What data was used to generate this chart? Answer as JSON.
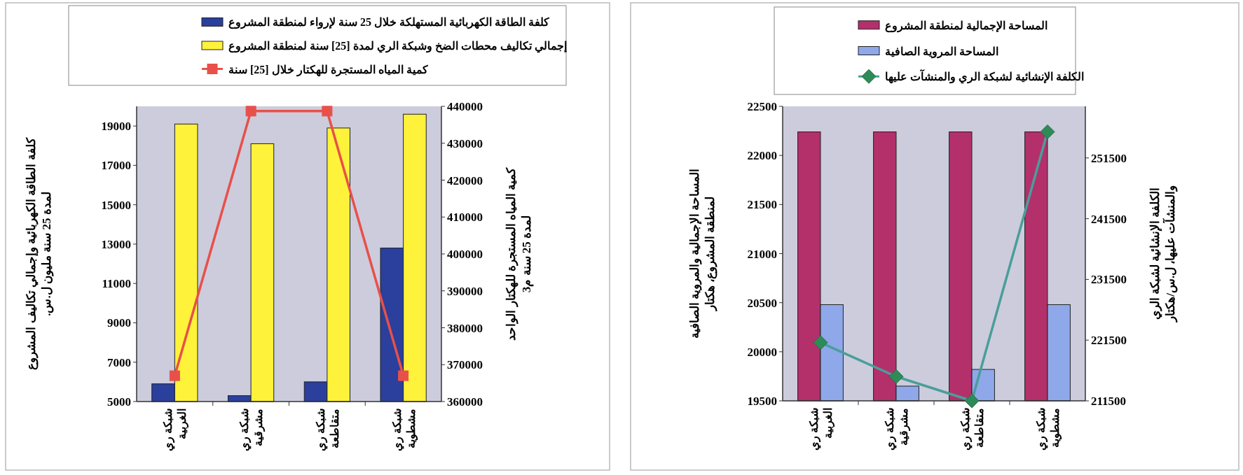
{
  "chart_data": [
    {
      "type": "bar",
      "categories": [
        "شبكة ري الغربية",
        "شبكة ري مشرقية",
        "شبكة ري متقاطعة",
        "شبكة ري مشطوية"
      ],
      "ylabel": "كلفة الطاقة الكهربائية وإجمالي تكاليف المشروع لمدة 25 سنة مليون ل.س.",
      "y2label": "كمية المياه المستجرة للهكتار الواحد لمدة 25 سنة م3",
      "series": [
        {
          "name": "كلفة الطاقة الكهربائية المستهلكة خلال 25 سنة لإرواء لمنطقة المشروع",
          "color": "#2b3f9c",
          "values": [
            5900,
            5300,
            6000,
            12800
          ]
        },
        {
          "name": "إجمالي تكاليف محطات الضخ وشبكة الري لمدة [25] سنة لمنطقة المشروع",
          "color": "#fff23a",
          "values": [
            19100,
            18100,
            18900,
            19600
          ]
        },
        {
          "name": "كمية المياه المستجرة للهكتار خلال [25] سنة",
          "color": "#e8504a",
          "type": "line",
          "axis": "y2",
          "values": [
            367000,
            438700,
            438700,
            367000
          ]
        }
      ],
      "ylim": [
        5000,
        20000
      ],
      "yticks": [
        5000,
        7000,
        9000,
        11000,
        13000,
        15000,
        17000,
        19000
      ],
      "y2lim": [
        360000,
        440000
      ],
      "y2ticks": [
        360000,
        370000,
        380000,
        390000,
        400000,
        410000,
        420000,
        430000,
        440000
      ],
      "legend": "top",
      "marker": "square"
    },
    {
      "type": "bar",
      "categories": [
        "شبكة ري الغربية",
        "شبكة ري مشرقية",
        "شبكة ري متقاطعة",
        "شبكة ري مشطوية"
      ],
      "ylabel": "المساحة الإجمالية والمروية الصافية لمنطقة المشروع، هكتار",
      "y2label": "الكلفة الإنشائية لشبكة الري والمنشآت عليها، ل.س/هكتار",
      "series": [
        {
          "name": "المساحة الإجمالية لمنطقة المشروع",
          "color": "#b3306b",
          "values": [
            22240,
            22240,
            22240,
            22240
          ]
        },
        {
          "name": "المساحة المروية الصافية",
          "color": "#8ea8ea",
          "values": [
            20480,
            19650,
            19820,
            20480
          ]
        },
        {
          "name": "الكلفة الإنشائية لشبكة الري والمنشآت عليها",
          "color": "#4a9e9a",
          "type": "line",
          "axis": "y2",
          "values": [
            221100,
            215500,
            211500,
            255800
          ]
        }
      ],
      "ylim": [
        19500,
        22500
      ],
      "yticks": [
        19500,
        20000,
        20500,
        21000,
        21500,
        22000,
        22500
      ],
      "y2lim": [
        211500,
        260000
      ],
      "y2ticks": [
        211500,
        221500,
        231500,
        241500,
        251500
      ],
      "legend": "top",
      "marker": "diamond"
    }
  ]
}
